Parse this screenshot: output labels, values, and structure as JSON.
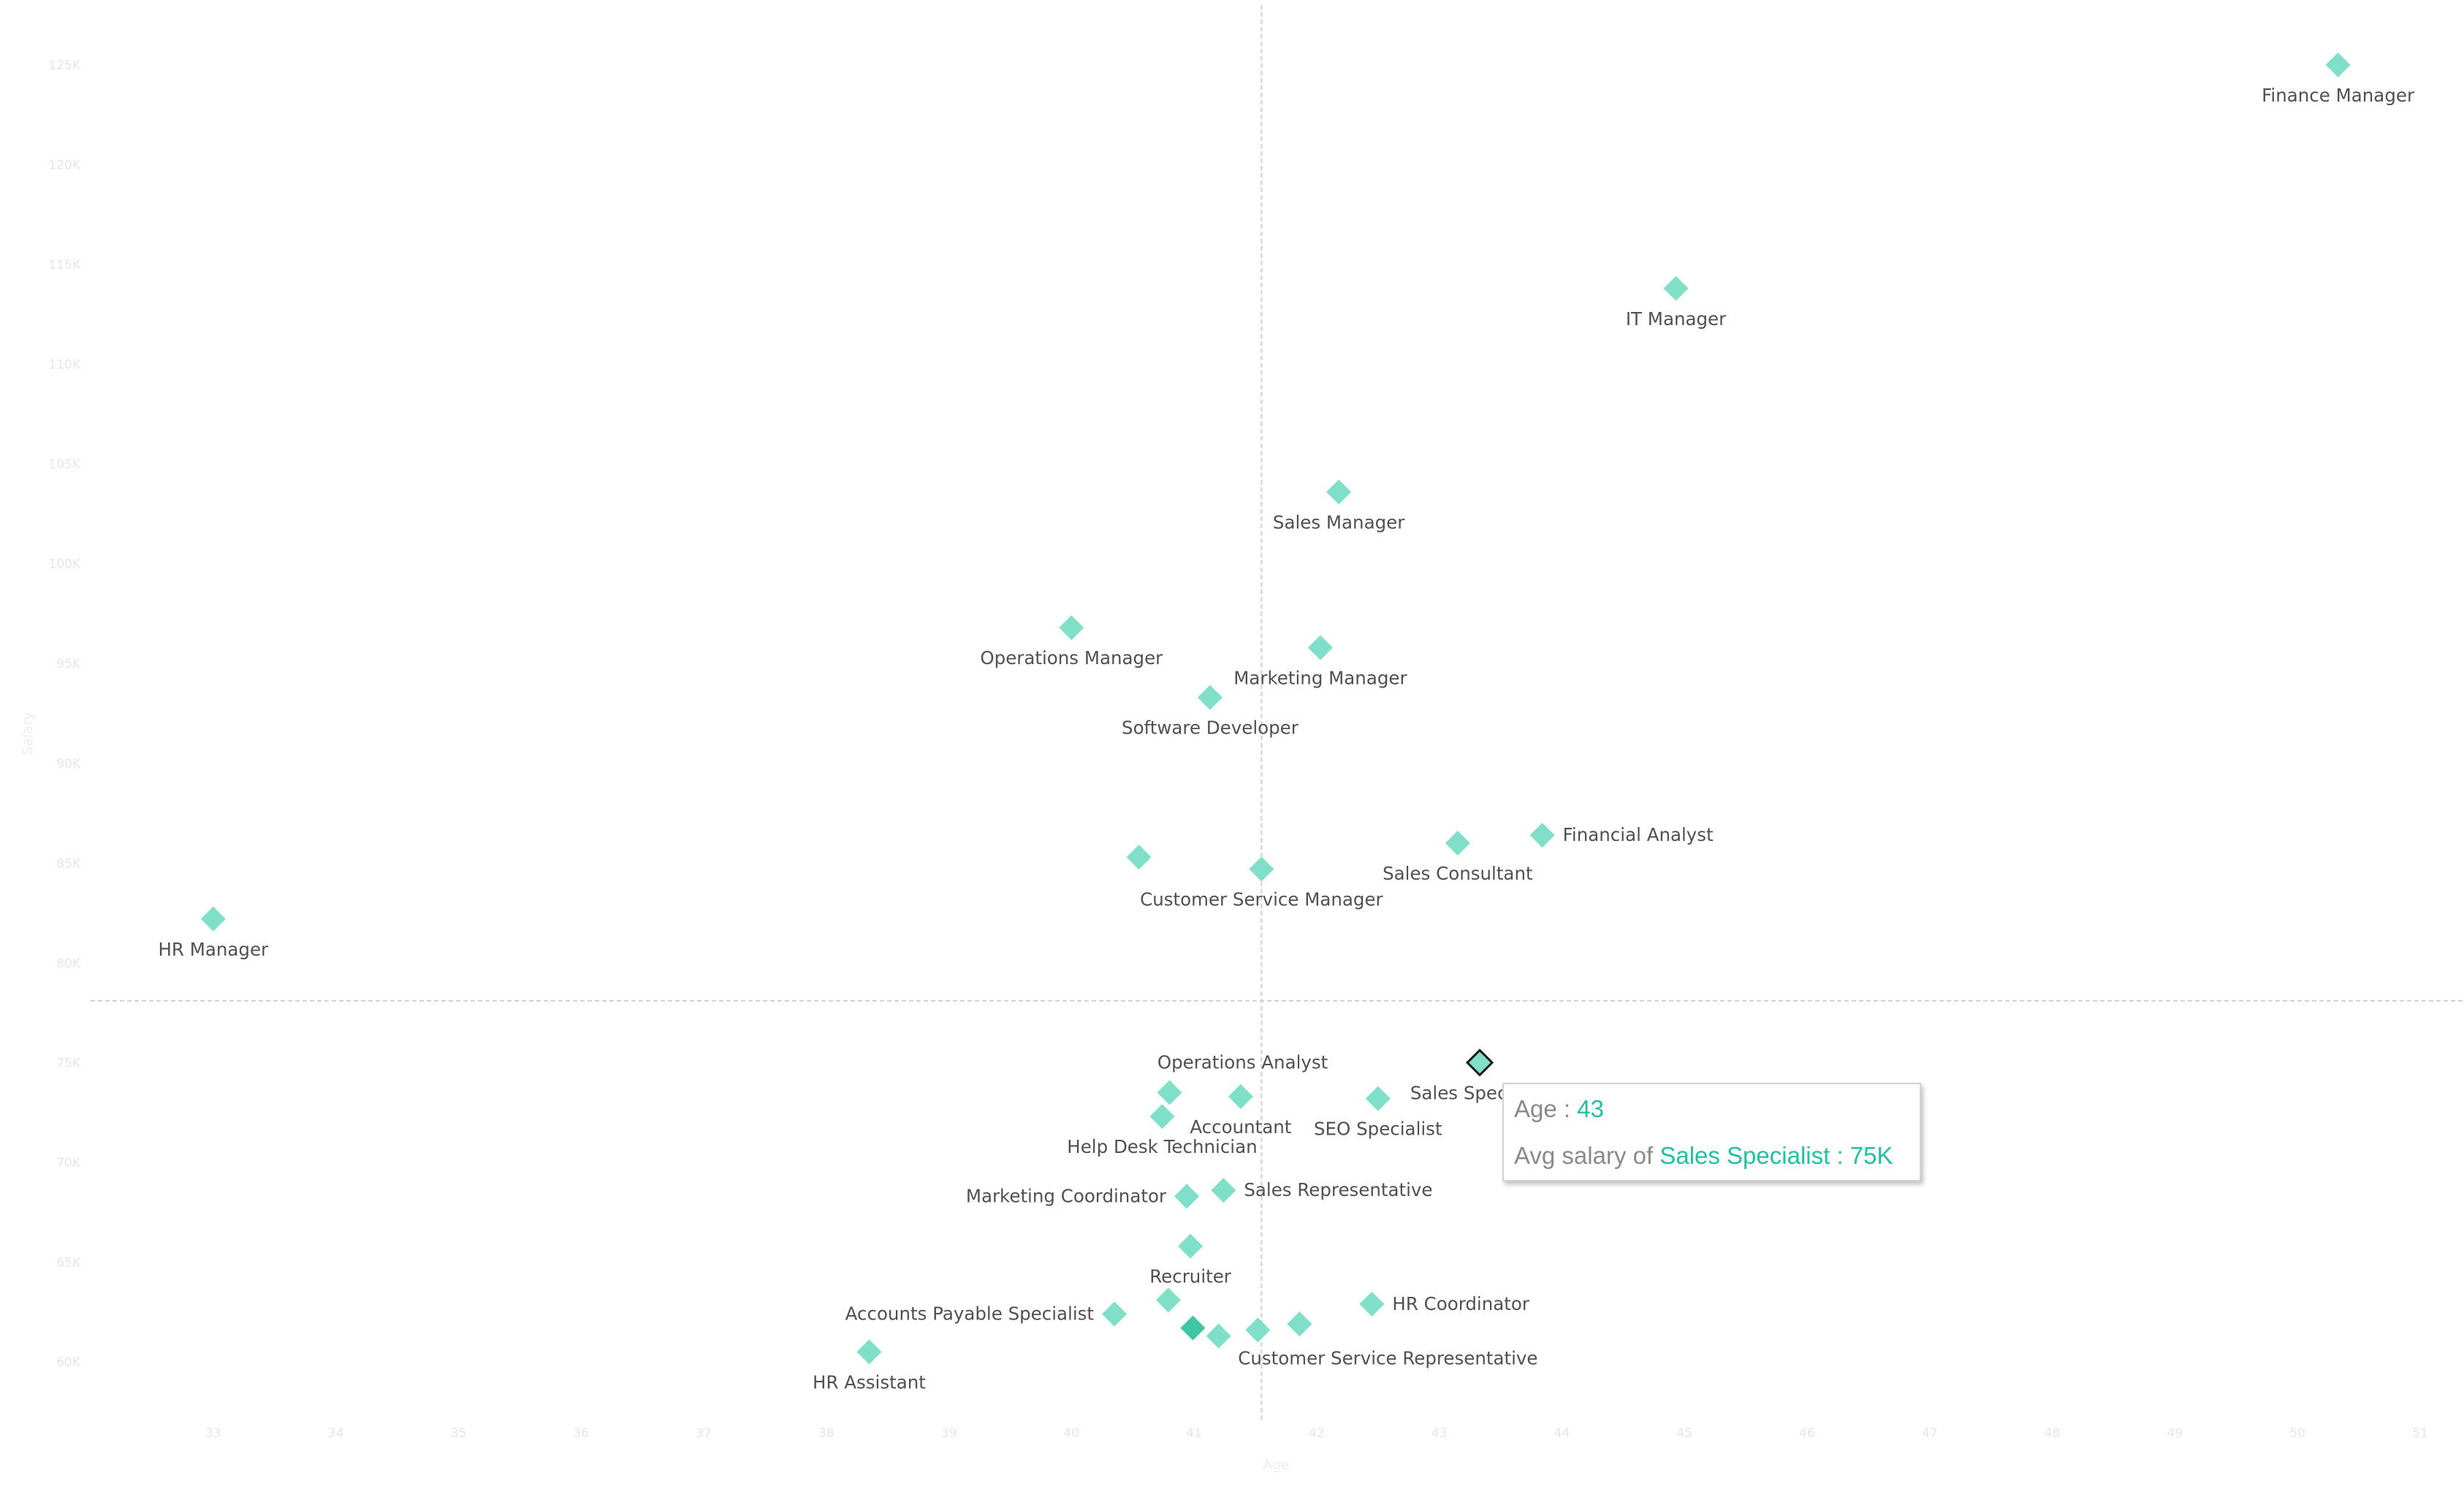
{
  "chart_data": {
    "type": "scatter",
    "xlabel": "Age",
    "ylabel": "Salary",
    "xlim": [
      32,
      51
    ],
    "ylim": [
      57000,
      128000
    ],
    "x_ticks": [
      33,
      34,
      35,
      36,
      37,
      38,
      39,
      40,
      41,
      42,
      43,
      44,
      45,
      46,
      47,
      48,
      49,
      50,
      51
    ],
    "y_ticks": [
      {
        "value": 60000,
        "label": "60K"
      },
      {
        "value": 65000,
        "label": "65K"
      },
      {
        "value": 70000,
        "label": "70K"
      },
      {
        "value": 75000,
        "label": "75K"
      },
      {
        "value": 80000,
        "label": "80K"
      },
      {
        "value": 85000,
        "label": "85K"
      },
      {
        "value": 90000,
        "label": "90K"
      },
      {
        "value": 95000,
        "label": "95K"
      },
      {
        "value": 100000,
        "label": "100K"
      },
      {
        "value": 105000,
        "label": "105K"
      },
      {
        "value": 110000,
        "label": "110K"
      },
      {
        "value": 115000,
        "label": "115K"
      },
      {
        "value": 120000,
        "label": "120K"
      },
      {
        "value": 125000,
        "label": "125K"
      }
    ],
    "reference_lines": {
      "x": 41.55,
      "y": 78100
    },
    "marker_color": "#7fdfc9",
    "highlight_color": "#3dc7a4",
    "points": [
      {
        "name": "Finance Manager",
        "x": 50.33,
        "y": 125000,
        "label": "Finance Manager",
        "label_pos": "below"
      },
      {
        "name": "IT Manager",
        "x": 44.93,
        "y": 113800,
        "label": "IT Manager",
        "label_pos": "below"
      },
      {
        "name": "Sales Manager",
        "x": 42.18,
        "y": 103600,
        "label": "Sales Manager",
        "label_pos": "below"
      },
      {
        "name": "Operations Manager",
        "x": 40.0,
        "y": 96800,
        "label": "Operations Manager",
        "label_pos": "below"
      },
      {
        "name": "Marketing Manager",
        "x": 42.03,
        "y": 95800,
        "label": "Marketing Manager",
        "label_pos": "below"
      },
      {
        "name": "Software Developer",
        "x": 41.13,
        "y": 93300,
        "label": "Software Developer",
        "label_pos": "below"
      },
      {
        "name": "Financial Analyst",
        "x": 43.84,
        "y": 86400,
        "label": "Financial Analyst",
        "label_pos": "right"
      },
      {
        "name": "Sales Consultant",
        "x": 43.15,
        "y": 86000,
        "label": "Sales Consultant",
        "label_pos": "below"
      },
      {
        "name": "Customer Service Manager",
        "x": 41.55,
        "y": 84700,
        "label": "Customer Service Manager",
        "label_pos": "below"
      },
      {
        "name": "HR Manager",
        "x": 33.0,
        "y": 82200,
        "label": "HR Manager",
        "label_pos": "below"
      },
      {
        "name": "Unlabeled role A",
        "x": 40.55,
        "y": 85300,
        "label": "",
        "label_pos": "none"
      },
      {
        "name": "Sales Specialist",
        "x": 43.33,
        "y": 75000,
        "label": "Sales Specialist",
        "label_pos": "below",
        "highlighted": true
      },
      {
        "name": "Operations Analyst",
        "x": 40.8,
        "y": 73500,
        "label": "Operations Analyst",
        "label_pos": "above-right"
      },
      {
        "name": "Accountant",
        "x": 41.38,
        "y": 73300,
        "label": "Accountant",
        "label_pos": "below"
      },
      {
        "name": "SEO Specialist",
        "x": 42.5,
        "y": 73200,
        "label": "SEO Specialist",
        "label_pos": "below"
      },
      {
        "name": "Help Desk Technician",
        "x": 40.74,
        "y": 72300,
        "label": "Help Desk Technician",
        "label_pos": "below"
      },
      {
        "name": "Sales Representative",
        "x": 41.24,
        "y": 68600,
        "label": "Sales Representative",
        "label_pos": "right"
      },
      {
        "name": "Marketing Coordinator",
        "x": 40.94,
        "y": 68300,
        "label": "Marketing Coordinator",
        "label_pos": "left"
      },
      {
        "name": "Recruiter",
        "x": 40.97,
        "y": 65800,
        "label": "Recruiter",
        "label_pos": "below"
      },
      {
        "name": "HR Coordinator",
        "x": 42.45,
        "y": 62900,
        "label": "HR Coordinator",
        "label_pos": "right"
      },
      {
        "name": "Accounts Payable Specialist",
        "x": 40.35,
        "y": 62400,
        "label": "Accounts Payable Specialist",
        "label_pos": "left"
      },
      {
        "name": "Unlabeled role B",
        "x": 40.79,
        "y": 63100,
        "label": "",
        "label_pos": "none"
      },
      {
        "name": "Unlabeled role C",
        "x": 40.99,
        "y": 61700,
        "label": "",
        "label_pos": "none",
        "darker": true
      },
      {
        "name": "Unlabeled role D",
        "x": 41.2,
        "y": 61300,
        "label": "",
        "label_pos": "none"
      },
      {
        "name": "Customer Service Representative",
        "x": 41.52,
        "y": 61600,
        "label": "Customer Service Representative",
        "label_pos": "below-right"
      },
      {
        "name": "Unlabeled role E",
        "x": 41.86,
        "y": 61900,
        "label": "",
        "label_pos": "none"
      },
      {
        "name": "HR Assistant",
        "x": 38.35,
        "y": 60500,
        "label": "HR Assistant",
        "label_pos": "below"
      }
    ]
  },
  "tooltip": {
    "age_label": "Age :",
    "age_value": "43",
    "salary_label": "Avg salary of",
    "salary_value": "Sales Specialist : 75K"
  }
}
